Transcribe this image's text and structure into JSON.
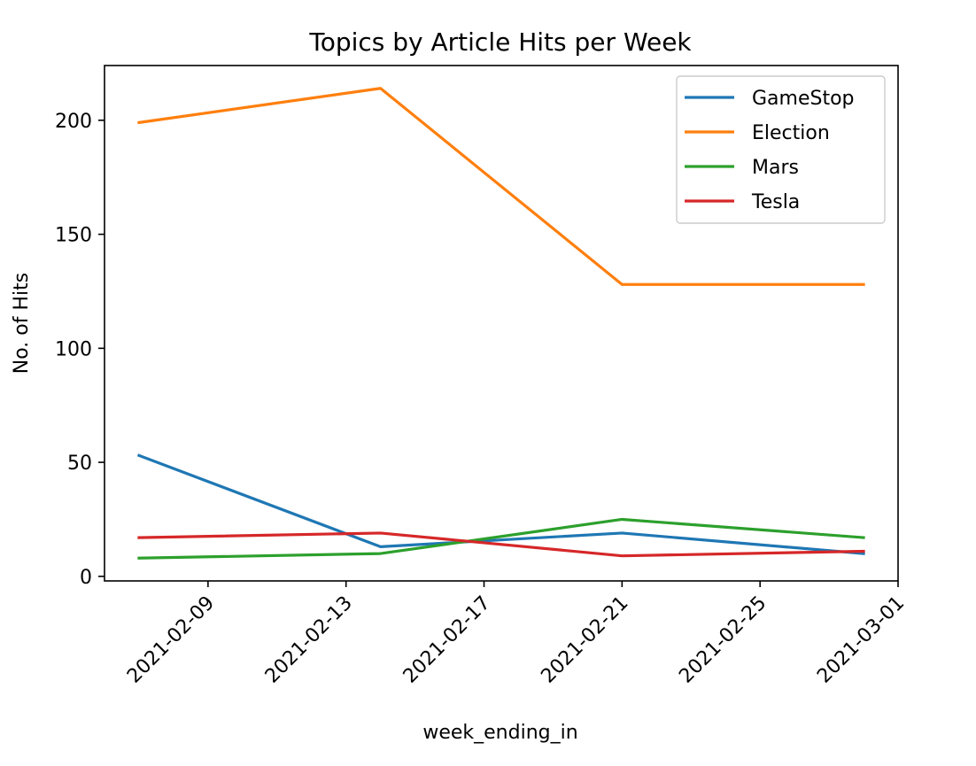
{
  "chart_data": {
    "type": "line",
    "title": "Topics by Article Hits per Week",
    "xlabel": "week_ending_in",
    "ylabel": "No. of Hits",
    "x": [
      "2021-02-07",
      "2021-02-14",
      "2021-02-21",
      "2021-02-28"
    ],
    "xlim": [
      "2021-02-06",
      "2021-03-01"
    ],
    "xticks": [
      "2021-02-09",
      "2021-02-13",
      "2021-02-17",
      "2021-02-21",
      "2021-02-25",
      "2021-03-01"
    ],
    "ylim": [
      -2,
      224
    ],
    "yticks": [
      0,
      50,
      100,
      150,
      200
    ],
    "grid": false,
    "legend_position": "top-right",
    "series": [
      {
        "name": "GameStop",
        "color": "#1f77b4",
        "values": [
          53,
          13,
          19,
          10
        ]
      },
      {
        "name": "Election",
        "color": "#ff7f0e",
        "values": [
          199,
          214,
          128,
          128
        ]
      },
      {
        "name": "Mars",
        "color": "#2ca02c",
        "values": [
          8,
          10,
          25,
          17
        ]
      },
      {
        "name": "Tesla",
        "color": "#d62728",
        "values": [
          17,
          19,
          9,
          11
        ]
      }
    ]
  }
}
